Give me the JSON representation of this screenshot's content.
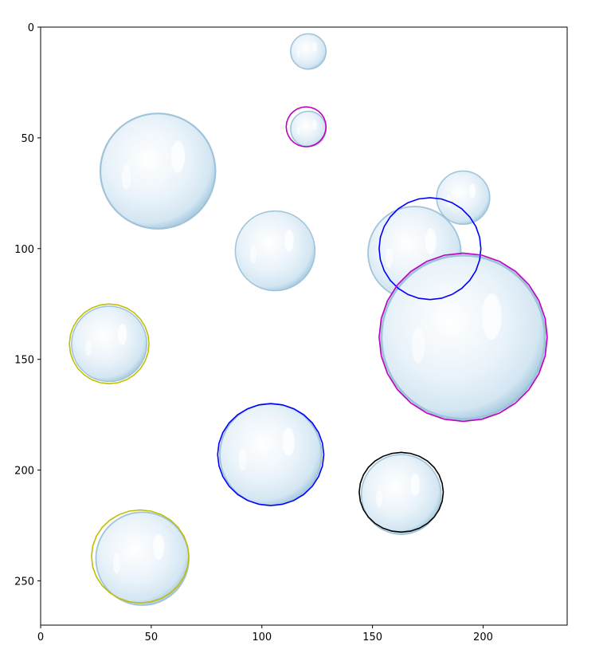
{
  "chart_data": {
    "type": "scatter",
    "title": "",
    "xlabel": "",
    "ylabel": "",
    "xlim": [
      0,
      238
    ],
    "ylim": [
      270,
      0
    ],
    "y_axis_inverted": true,
    "grid": false,
    "legend": "none",
    "x_ticks": [
      0,
      50,
      100,
      150,
      200
    ],
    "y_ticks": [
      0,
      50,
      100,
      150,
      200,
      250
    ],
    "background_image": "soap-bubbles-photo",
    "bubbles": [
      {
        "cx": 121,
        "cy": 11,
        "r": 8
      },
      {
        "cx": 121,
        "cy": 46,
        "r": 8
      },
      {
        "cx": 53,
        "cy": 65,
        "r": 26
      },
      {
        "cx": 191,
        "cy": 77,
        "r": 12
      },
      {
        "cx": 106,
        "cy": 101,
        "r": 18
      },
      {
        "cx": 169,
        "cy": 102,
        "r": 21
      },
      {
        "cx": 191,
        "cy": 140,
        "r": 37
      },
      {
        "cx": 31,
        "cy": 143,
        "r": 17
      },
      {
        "cx": 104,
        "cy": 193,
        "r": 23
      },
      {
        "cx": 163,
        "cy": 211,
        "r": 18
      },
      {
        "cx": 46,
        "cy": 240,
        "r": 21
      }
    ],
    "contours": [
      {
        "color": "#bf00bf",
        "cx": 120,
        "cy": 45,
        "rx": 9,
        "ry": 9
      },
      {
        "color": "#0000ff",
        "cx": 176,
        "cy": 100,
        "rx": 23,
        "ry": 23
      },
      {
        "color": "#bf00bf",
        "cx": 191,
        "cy": 140,
        "rx": 38,
        "ry": 38
      },
      {
        "color": "#bfbf00",
        "cx": 31,
        "cy": 143,
        "rx": 18,
        "ry": 18
      },
      {
        "color": "#0000ff",
        "cx": 104,
        "cy": 193,
        "rx": 24,
        "ry": 23
      },
      {
        "color": "#000000",
        "cx": 163,
        "cy": 210,
        "rx": 19,
        "ry": 18
      },
      {
        "color": "#bfbf00",
        "cx": 45,
        "cy": 239,
        "rx": 22,
        "ry": 21
      }
    ]
  }
}
